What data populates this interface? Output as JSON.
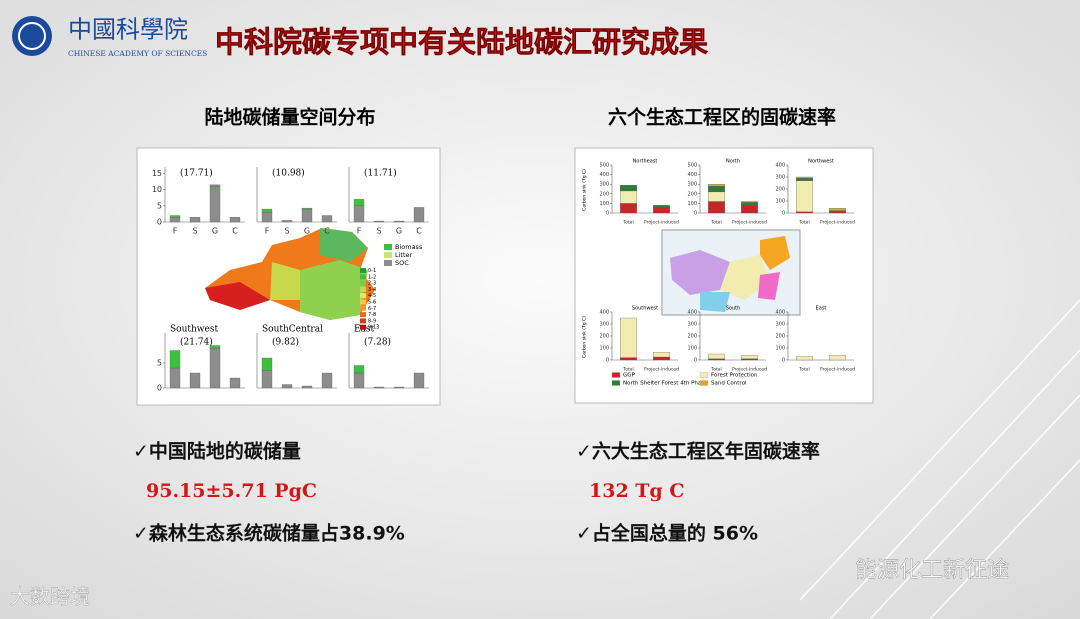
{
  "header": {
    "logo_cn": "中國科學院",
    "logo_en": "CHINESE ACADEMY OF SCIENCES",
    "title": "中科院碳专项中有关陆地碳汇研究成果"
  },
  "left": {
    "heading": "陆地碳储量空间分布",
    "figure": {
      "legend": [
        {
          "name": "Biomass",
          "color": "#3cc13c"
        },
        {
          "name": "Litter",
          "color": "#c8e86a"
        },
        {
          "name": "SOC",
          "color": "#8c8c8c"
        }
      ],
      "map_legend": [
        "0-1",
        "1-2",
        "2-3",
        "3-4",
        "4-5",
        "5-6",
        "6-7",
        "7-8",
        "8-9",
        "9-13"
      ],
      "panels": [
        {
          "label": "(17.71)",
          "categories": [
            "F",
            "S",
            "G",
            "C"
          ],
          "ylim": [
            0,
            17
          ],
          "yticks": [
            0,
            5,
            10,
            15
          ],
          "series": [
            {
              "color": "#8c8c8c",
              "values": [
                1.5,
                1.5,
                11,
                1.5
              ]
            },
            {
              "color": "#3cc13c",
              "values": [
                0.5,
                0,
                0.5,
                0
              ]
            }
          ]
        },
        {
          "label": "(10.98)",
          "categories": [
            "F",
            "S",
            "G",
            "C"
          ],
          "ylim": [
            0,
            17
          ],
          "series": [
            {
              "color": "#8c8c8c",
              "values": [
                3,
                0.5,
                4,
                2
              ]
            },
            {
              "color": "#3cc13c",
              "values": [
                1,
                0,
                0.3,
                0
              ]
            }
          ]
        },
        {
          "label": "(11.71)",
          "categories": [
            "F",
            "S",
            "G",
            "C"
          ],
          "ylim": [
            0,
            17
          ],
          "series": [
            {
              "color": "#8c8c8c",
              "values": [
                5,
                0.3,
                0.3,
                4.5
              ]
            },
            {
              "color": "#3cc13c",
              "values": [
                2,
                0,
                0,
                0
              ]
            }
          ]
        },
        {
          "name": "Southwest",
          "label": "(21.74)",
          "ylim": [
            0,
            11
          ],
          "yticks": [
            0,
            5
          ],
          "series": [
            {
              "color": "#8c8c8c",
              "values": [
                4,
                3,
                8,
                2
              ]
            },
            {
              "color": "#3cc13c",
              "values": [
                3.5,
                0,
                0.5,
                0
              ]
            }
          ]
        },
        {
          "name": "SouthCentral",
          "label": "(9.82)",
          "ylim": [
            0,
            11
          ],
          "series": [
            {
              "color": "#8c8c8c",
              "values": [
                3.5,
                0.7,
                0.4,
                3
              ]
            },
            {
              "color": "#3cc13c",
              "values": [
                2.5,
                0,
                0,
                0
              ]
            }
          ]
        },
        {
          "name": "East",
          "label": "(7.28)",
          "ylim": [
            0,
            11
          ],
          "series": [
            {
              "color": "#8c8c8c",
              "values": [
                3,
                0.2,
                0.2,
                3
              ]
            },
            {
              "color": "#3cc13c",
              "values": [
                1.5,
                0,
                0,
                0
              ]
            }
          ]
        }
      ]
    },
    "bullets": [
      {
        "text": "✓中国陆地的碳储量"
      },
      {
        "text": "95.15±5.71 PgC",
        "highlight": true
      },
      {
        "text": "✓森林生态系统碳储量占38.9%"
      }
    ]
  },
  "right": {
    "heading": "六个生态工程区的固碳速率",
    "figure": {
      "y_label": "Carbon sink (Tg C)",
      "legend": [
        {
          "name": "GGP",
          "color": "#c62828"
        },
        {
          "name": "Forest Protection",
          "color": "#f3ecb0"
        },
        {
          "name": "North Shelter Forest 4th Phase",
          "color": "#2e7d32"
        },
        {
          "name": "Sand Control",
          "color": "#e3a532"
        }
      ],
      "panels": [
        {
          "name": "Northeast",
          "categories": [
            "Total",
            "Project-induced"
          ],
          "ylim": [
            0,
            500
          ],
          "yticks": [
            0,
            100,
            200,
            300,
            400,
            500
          ],
          "values": [
            [
              100,
              60
            ],
            [
              130,
              0
            ],
            [
              60,
              20
            ],
            [
              0,
              0
            ]
          ]
        },
        {
          "name": "North",
          "categories": [
            "Total",
            "Project-induced"
          ],
          "ylim": [
            0,
            500
          ],
          "yticks": [
            0,
            100,
            200,
            300,
            400,
            500
          ],
          "values": [
            [
              120,
              80
            ],
            [
              100,
              0
            ],
            [
              60,
              30
            ],
            [
              20,
              10
            ]
          ]
        },
        {
          "name": "Northwest",
          "categories": [
            "Total",
            "Project-induced"
          ],
          "ylim": [
            0,
            400
          ],
          "yticks": [
            0,
            100,
            200,
            300,
            400
          ],
          "values": [
            [
              10,
              10
            ],
            [
              260,
              0
            ],
            [
              20,
              10
            ],
            [
              10,
              20
            ]
          ]
        },
        {
          "name": "Southwest",
          "categories": [
            "Total",
            "Project-induced"
          ],
          "ylim": [
            0,
            400
          ],
          "yticks": [
            0,
            100,
            200,
            300,
            400
          ],
          "values": [
            [
              20,
              25
            ],
            [
              330,
              40
            ],
            [
              0,
              0
            ],
            [
              0,
              0
            ]
          ]
        },
        {
          "name": "South",
          "categories": [
            "Total",
            "Project-induced"
          ],
          "ylim": [
            0,
            400
          ],
          "yticks": [
            0,
            100,
            200,
            300,
            400
          ],
          "values": [
            [
              10,
              10
            ],
            [
              40,
              30
            ],
            [
              0,
              0
            ],
            [
              0,
              0
            ]
          ]
        },
        {
          "name": "East",
          "categories": [
            "Total",
            "Project-induced"
          ],
          "ylim": [
            0,
            400
          ],
          "yticks": [
            0,
            100,
            200,
            300,
            400
          ],
          "values": [
            [
              0,
              0
            ],
            [
              30,
              40
            ],
            [
              0,
              0
            ],
            [
              0,
              0
            ]
          ]
        }
      ]
    },
    "bullets": [
      {
        "text": "✓六大生态工程区年固碳速率"
      },
      {
        "text": "132 Tg C",
        "highlight": true
      },
      {
        "text": "✓占全国总量的 56%"
      }
    ]
  },
  "watermarks": {
    "left": "大数跨境",
    "right": "能源化工新征途"
  }
}
